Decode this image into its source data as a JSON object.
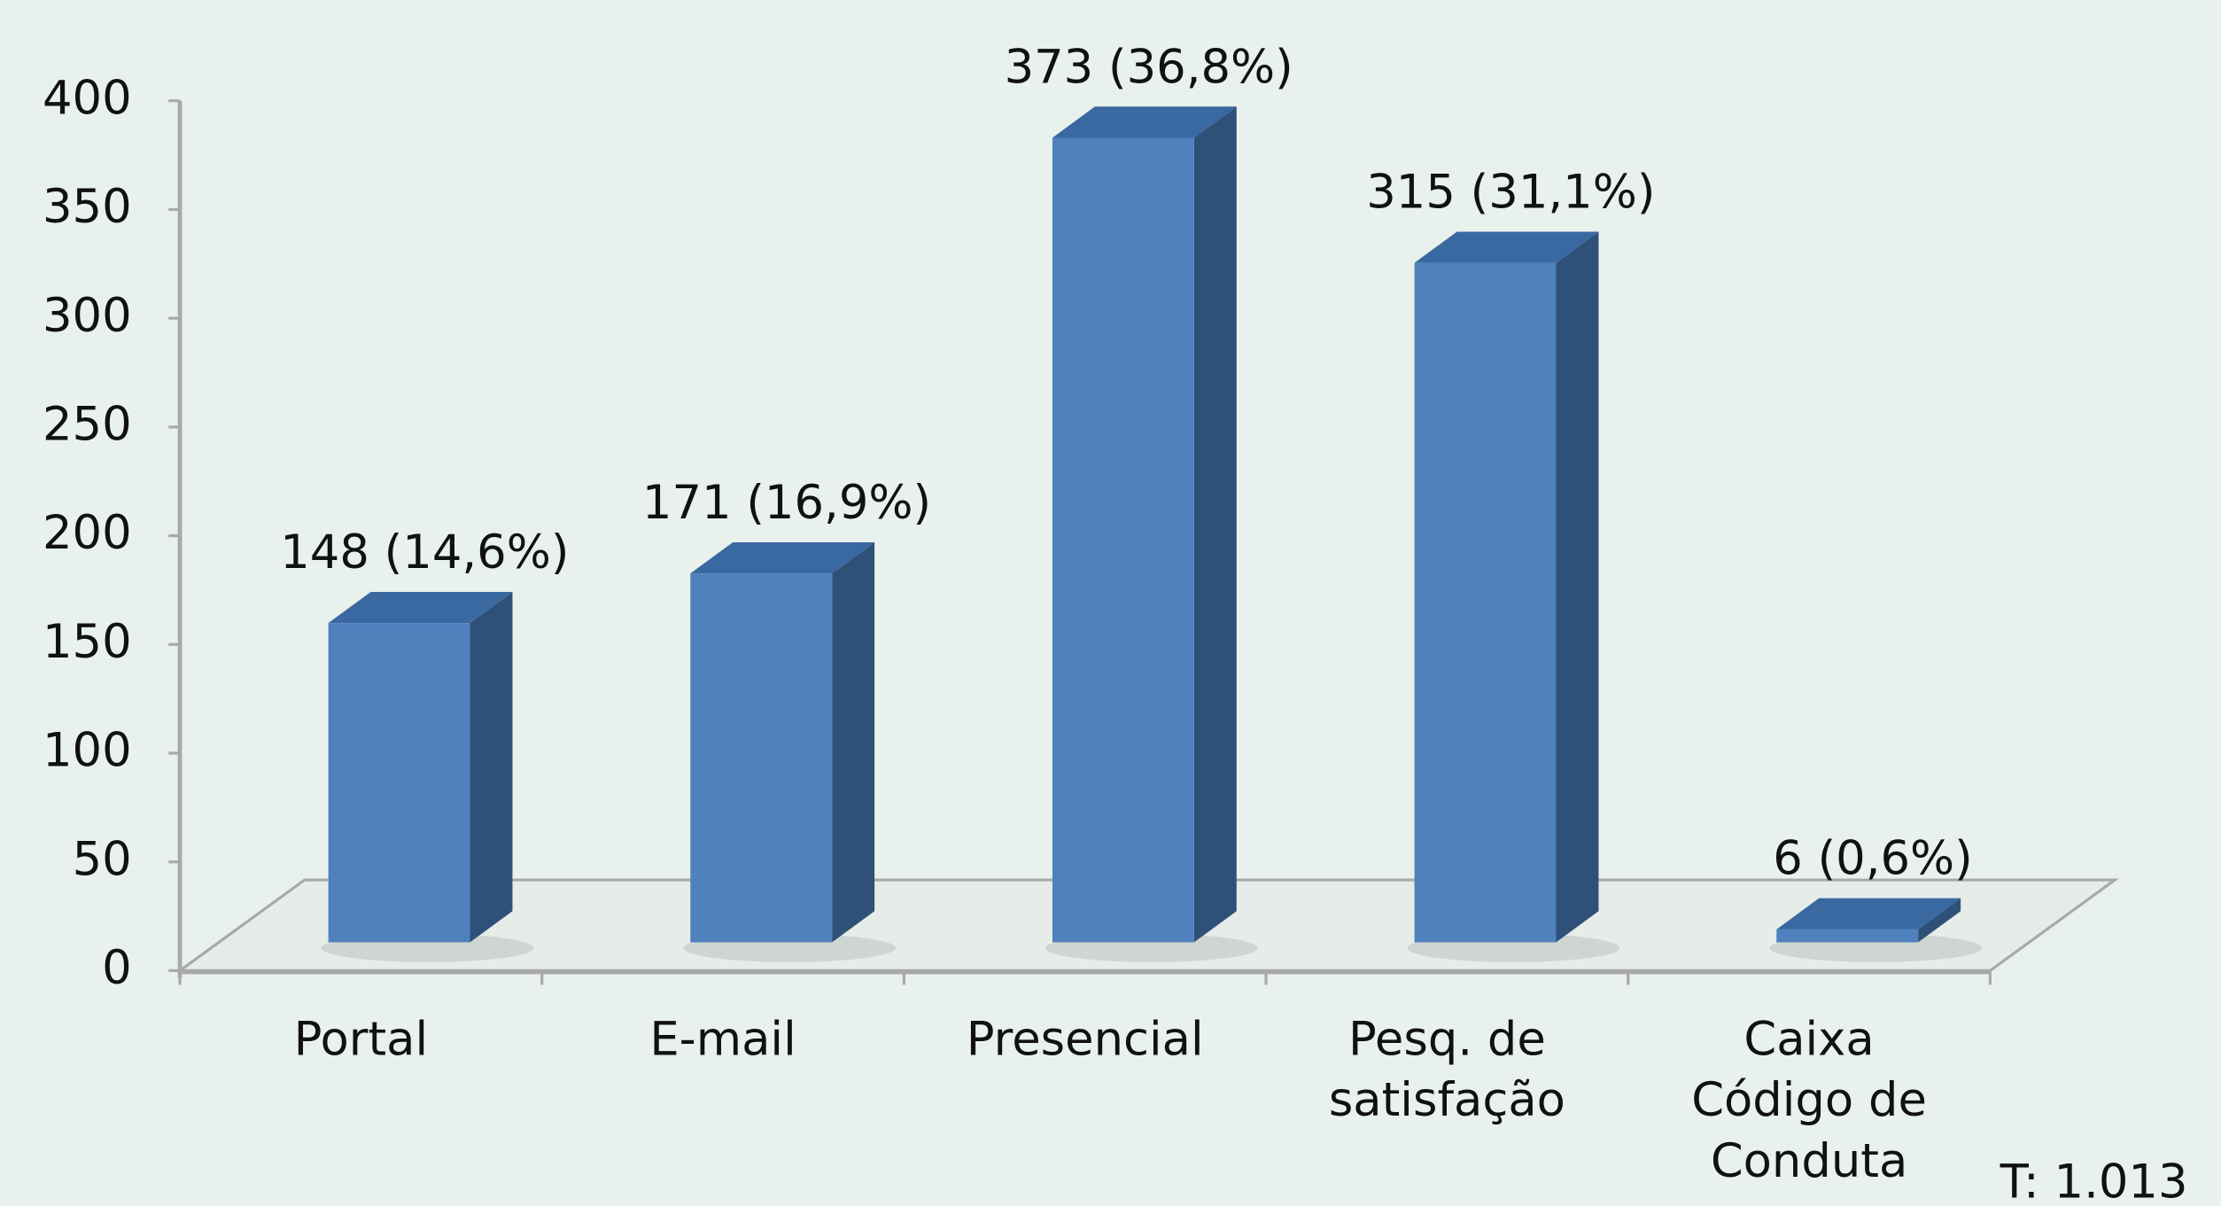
{
  "chart_data": {
    "type": "bar",
    "categories": [
      "Portal",
      "E-mail",
      "Presencial",
      "Pesq. de satisfação",
      "Caixa Código de Conduta"
    ],
    "values": [
      148,
      171,
      373,
      315,
      6
    ],
    "value_labels": [
      "148 (14,6%)",
      "171 (16,9%)",
      "373 (36,8%)",
      "315 (31,1%)",
      "6 (0,6%)"
    ],
    "color": "#4f81bd",
    "ylim": [
      0,
      400
    ],
    "yticks": [
      0,
      50,
      100,
      150,
      200,
      250,
      300,
      350,
      400
    ],
    "annotation": "T: 1.013"
  }
}
